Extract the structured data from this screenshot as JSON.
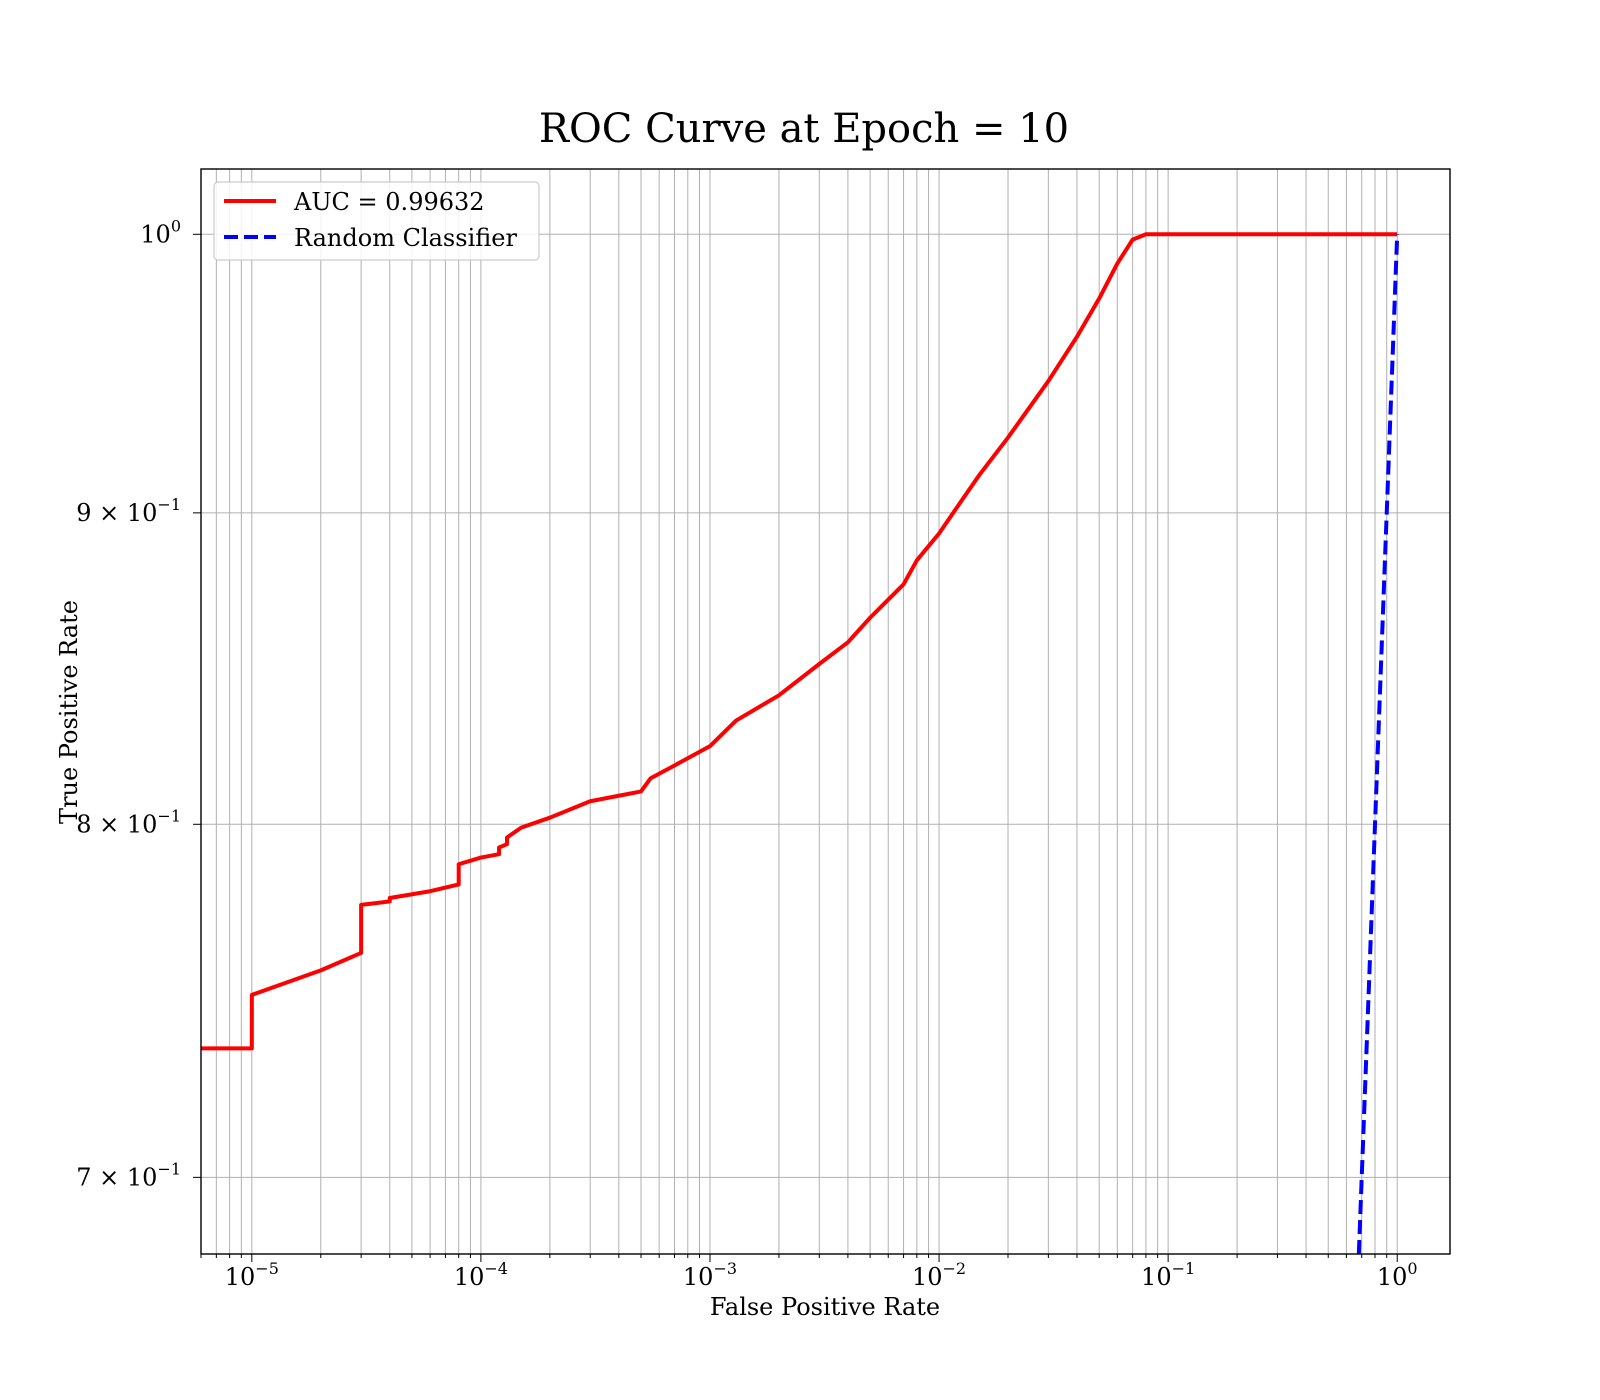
{
  "chart_data": {
    "type": "line",
    "title": "ROC Curve at Epoch = 10",
    "xlabel": "False Positive Rate",
    "ylabel": "True Positive Rate",
    "xscale": "log",
    "yscale": "log",
    "xlim": [
      6e-06,
      1.7
    ],
    "ylim": [
      0.68,
      1.025
    ],
    "grid": "on (major and minor)",
    "legend_placement": "upper-left",
    "x_ticks": [
      {
        "value": 1e-05,
        "base": "10",
        "exp": "−5"
      },
      {
        "value": 0.0001,
        "base": "10",
        "exp": "−4"
      },
      {
        "value": 0.001,
        "base": "10",
        "exp": "−3"
      },
      {
        "value": 0.01,
        "base": "10",
        "exp": "−2"
      },
      {
        "value": 0.1,
        "base": "10",
        "exp": "−1"
      },
      {
        "value": 1,
        "base": "10",
        "exp": "0"
      }
    ],
    "y_ticks": [
      {
        "value": 1.0,
        "base": "10",
        "exp": "0"
      },
      {
        "value": 0.9,
        "base": "9 × 10",
        "exp": "−1"
      },
      {
        "value": 0.8,
        "base": "8 × 10",
        "exp": "−1"
      },
      {
        "value": 0.7,
        "base": "7 × 10",
        "exp": "−1"
      }
    ],
    "series": [
      {
        "name": "AUC = 0.99632",
        "color": "#ff0000",
        "dash": "solid",
        "x": [
          6e-06,
          1e-05,
          1e-05,
          2e-05,
          3e-05,
          3e-05,
          4e-05,
          4e-05,
          6e-05,
          8e-05,
          8e-05,
          0.0001,
          0.00012,
          0.00012,
          0.00013,
          0.00013,
          0.00015,
          0.0002,
          0.0003,
          0.0005,
          0.00055,
          0.0007,
          0.001,
          0.0013,
          0.002,
          0.003,
          0.004,
          0.005,
          0.007,
          0.008,
          0.01,
          0.012,
          0.015,
          0.02,
          0.03,
          0.04,
          0.05,
          0.06,
          0.07,
          0.08,
          0.1,
          0.2,
          0.5,
          1.0
        ],
        "y": [
          0.735,
          0.735,
          0.75,
          0.757,
          0.762,
          0.776,
          0.777,
          0.778,
          0.78,
          0.782,
          0.788,
          0.79,
          0.791,
          0.793,
          0.794,
          0.796,
          0.799,
          0.802,
          0.807,
          0.81,
          0.814,
          0.818,
          0.824,
          0.832,
          0.84,
          0.85,
          0.857,
          0.865,
          0.876,
          0.884,
          0.893,
          0.902,
          0.913,
          0.926,
          0.946,
          0.962,
          0.976,
          0.989,
          0.998,
          1.0,
          1.0,
          1.0,
          1.0,
          1.0
        ]
      },
      {
        "name": "Random Classifier",
        "color": "#0000ff",
        "dash": "dashed",
        "x": [
          0.68,
          1.0
        ],
        "y": [
          0.68,
          1.0
        ]
      }
    ]
  }
}
